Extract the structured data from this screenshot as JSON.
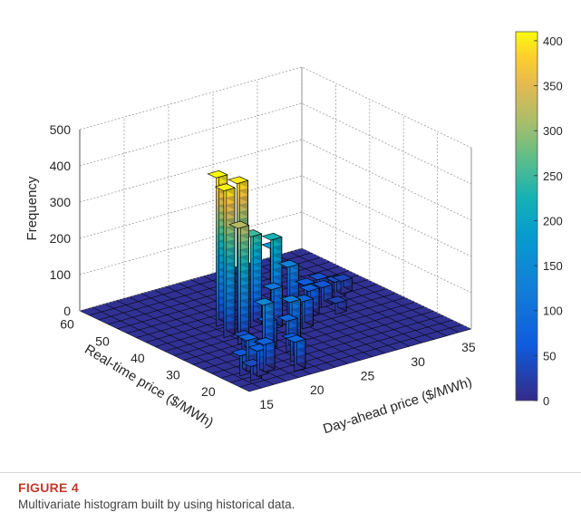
{
  "chart_data": {
    "type": "bar3d",
    "zlabel": "Frequency",
    "xlabel": "Day-ahead price ($/MWh)",
    "ylabel": "Real-time price ($/MWh)",
    "x_ticks": [
      15,
      20,
      25,
      30,
      35
    ],
    "y_ticks": [
      20,
      30,
      40,
      50,
      60
    ],
    "z_ticks": [
      0,
      100,
      200,
      300,
      400,
      500
    ],
    "xlim": [
      14,
      36
    ],
    "ylim": [
      14,
      62
    ],
    "zlim": [
      0,
      500
    ],
    "grid": true,
    "colormap": "parula",
    "colorbar": {
      "ticks": [
        0,
        50,
        100,
        150,
        200,
        250,
        300,
        350,
        400
      ],
      "limits": [
        0,
        410
      ]
    },
    "bars": [
      {
        "x": 16,
        "y": 19,
        "z": 40
      },
      {
        "x": 16,
        "y": 22,
        "z": 55
      },
      {
        "x": 17,
        "y": 20,
        "z": 70
      },
      {
        "x": 17,
        "y": 23,
        "z": 85
      },
      {
        "x": 18,
        "y": 21,
        "z": 75
      },
      {
        "x": 18,
        "y": 25,
        "z": 60
      },
      {
        "x": 19,
        "y": 24,
        "z": 50
      },
      {
        "x": 19,
        "y": 30,
        "z": 45
      },
      {
        "x": 20,
        "y": 18,
        "z": 80
      },
      {
        "x": 21,
        "y": 22,
        "z": 60
      },
      {
        "x": 20,
        "y": 27,
        "z": 140
      },
      {
        "x": 21,
        "y": 29,
        "z": 75
      },
      {
        "x": 22,
        "y": 26,
        "z": 85
      },
      {
        "x": 23,
        "y": 28,
        "z": 120
      },
      {
        "x": 20,
        "y": 34,
        "z": 320
      },
      {
        "x": 20,
        "y": 38,
        "z": 405
      },
      {
        "x": 22,
        "y": 40,
        "z": 400
      },
      {
        "x": 21,
        "y": 43,
        "z": 410
      },
      {
        "x": 23,
        "y": 39,
        "z": 250
      },
      {
        "x": 24,
        "y": 36,
        "z": 110
      },
      {
        "x": 25,
        "y": 39,
        "z": 225
      },
      {
        "x": 26,
        "y": 42,
        "z": 180
      },
      {
        "x": 27,
        "y": 40,
        "z": 130
      },
      {
        "x": 26,
        "y": 33,
        "z": 75
      },
      {
        "x": 28,
        "y": 37,
        "z": 70
      },
      {
        "x": 29,
        "y": 41,
        "z": 60
      },
      {
        "x": 30,
        "y": 39,
        "z": 55
      },
      {
        "x": 31,
        "y": 43,
        "z": 50
      },
      {
        "x": 32,
        "y": 41,
        "z": 45
      },
      {
        "x": 33,
        "y": 42,
        "z": 35
      },
      {
        "x": 30,
        "y": 35,
        "z": 30
      }
    ]
  },
  "caption": {
    "label": "FIGURE 4",
    "text": "Multivariate histogram built by using historical data."
  }
}
